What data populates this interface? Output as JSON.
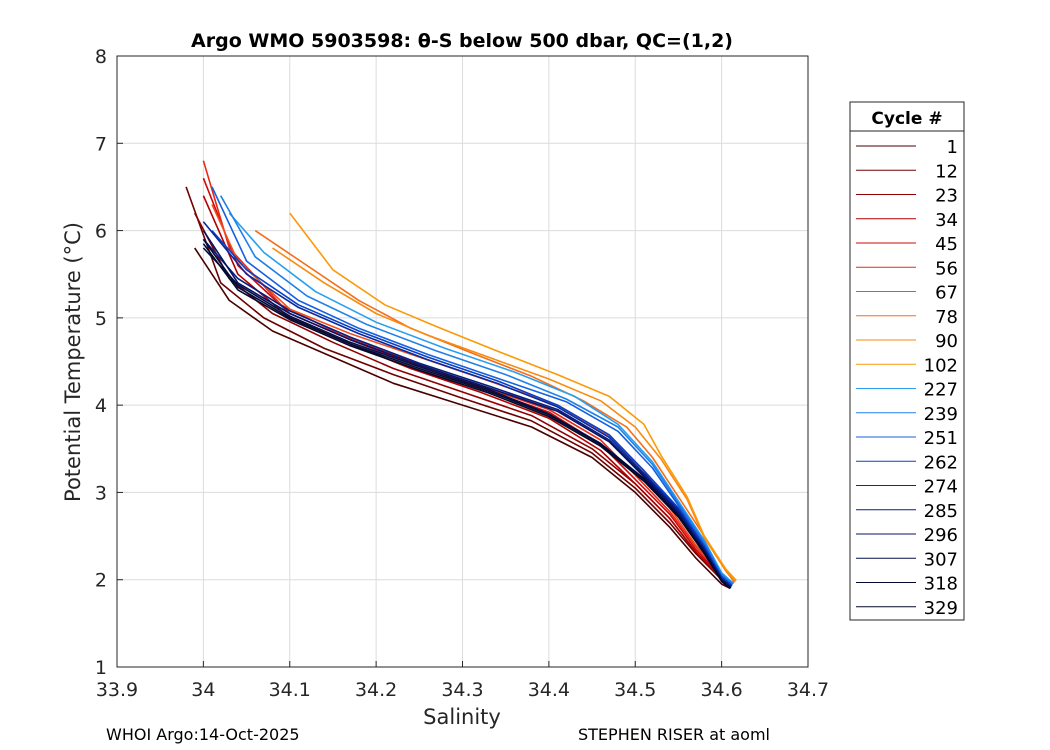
{
  "chart_data": {
    "type": "line",
    "title": "Argo WMO 5903598: θ-S below 500 dbar,  QC=(1,2)",
    "xlabel": "Salinity",
    "ylabel": "Potential Temperature (°C)",
    "xlim": [
      33.9,
      34.7
    ],
    "ylim": [
      1,
      8
    ],
    "xticks": [
      "33.9",
      "34",
      "34.1",
      "34.2",
      "34.3",
      "34.4",
      "34.5",
      "34.6",
      "34.7"
    ],
    "yticks": [
      "1",
      "2",
      "3",
      "4",
      "5",
      "6",
      "7",
      "8"
    ],
    "grid": true,
    "legend": {
      "title": "Cycle #",
      "placement": "right-outside",
      "entries": [
        {
          "label": "1",
          "color": "#4a0000"
        },
        {
          "label": "12",
          "color": "#6e0000"
        },
        {
          "label": "23",
          "color": "#8f0000"
        },
        {
          "label": "34",
          "color": "#b00000"
        },
        {
          "label": "45",
          "color": "#cc0a0a"
        },
        {
          "label": "56",
          "color": "#e62a18"
        },
        {
          "label": "67",
          "color": "#f05020"
        },
        {
          "label": "78",
          "color": "#f46e18"
        },
        {
          "label": "90",
          "color": "#f88a10"
        },
        {
          "label": "102",
          "color": "#fb9a08"
        },
        {
          "label": "227",
          "color": "#2a9ff0"
        },
        {
          "label": "239",
          "color": "#1f80ea"
        },
        {
          "label": "251",
          "color": "#1560e0"
        },
        {
          "label": "262",
          "color": "#0c40c4"
        },
        {
          "label": "274",
          "color": "#082aa0"
        },
        {
          "label": "285",
          "color": "#061c80"
        },
        {
          "label": "296",
          "color": "#051464"
        },
        {
          "label": "307",
          "color": "#040e48"
        },
        {
          "label": "318",
          "color": "#030a36"
        },
        {
          "label": "329",
          "color": "#02082a"
        }
      ]
    },
    "series": [
      {
        "name": "1",
        "color": "#4a0000",
        "s": [
          33.99,
          34.03,
          34.08,
          34.15,
          34.22,
          34.3,
          34.38,
          34.45,
          34.5,
          34.54,
          34.57,
          34.6,
          34.61
        ],
        "t": [
          5.8,
          5.2,
          4.85,
          4.55,
          4.25,
          4.0,
          3.75,
          3.4,
          3.0,
          2.6,
          2.25,
          1.95,
          1.9
        ]
      },
      {
        "name": "12",
        "color": "#6e0000",
        "s": [
          33.98,
          34.02,
          34.07,
          34.14,
          34.22,
          34.3,
          34.38,
          34.45,
          34.5,
          34.54,
          34.57,
          34.6,
          34.61
        ],
        "t": [
          6.5,
          5.4,
          5.0,
          4.65,
          4.35,
          4.08,
          3.82,
          3.45,
          3.05,
          2.65,
          2.3,
          2.0,
          1.92
        ]
      },
      {
        "name": "23",
        "color": "#8f0000",
        "s": [
          33.99,
          34.03,
          34.08,
          34.15,
          34.22,
          34.3,
          34.38,
          34.45,
          34.5,
          34.54,
          34.57,
          34.6,
          34.612
        ],
        "t": [
          6.2,
          5.45,
          5.05,
          4.72,
          4.42,
          4.15,
          3.88,
          3.5,
          3.1,
          2.7,
          2.32,
          2.0,
          1.93
        ]
      },
      {
        "name": "34",
        "color": "#b00000",
        "s": [
          34.0,
          34.04,
          34.1,
          34.17,
          34.24,
          34.32,
          34.4,
          34.46,
          34.5,
          34.54,
          34.57,
          34.6,
          34.612
        ],
        "t": [
          6.4,
          5.5,
          5.0,
          4.7,
          4.42,
          4.15,
          3.85,
          3.48,
          3.1,
          2.7,
          2.32,
          2.02,
          1.94
        ]
      },
      {
        "name": "45",
        "color": "#cc0a0a",
        "s": [
          34.0,
          34.04,
          34.1,
          34.17,
          34.24,
          34.32,
          34.4,
          34.46,
          34.5,
          34.54,
          34.57,
          34.6,
          34.613
        ],
        "t": [
          6.6,
          5.6,
          5.05,
          4.75,
          4.48,
          4.2,
          3.92,
          3.55,
          3.15,
          2.75,
          2.35,
          2.03,
          1.95
        ]
      },
      {
        "name": "56",
        "color": "#e62a18",
        "s": [
          34.0,
          34.03,
          34.09,
          34.16,
          34.24,
          34.32,
          34.4,
          34.46,
          34.5,
          34.54,
          34.57,
          34.6,
          34.614
        ],
        "t": [
          6.8,
          5.8,
          5.15,
          4.8,
          4.5,
          4.22,
          3.95,
          3.6,
          3.2,
          2.78,
          2.38,
          2.05,
          1.96
        ]
      },
      {
        "name": "67",
        "color": "#f05020",
        "s": [
          34.01,
          34.04,
          34.1,
          34.17,
          34.25,
          34.33,
          34.41,
          34.47,
          34.51,
          34.54,
          34.57,
          34.6,
          34.614
        ],
        "t": [
          6.3,
          5.65,
          5.1,
          4.82,
          4.55,
          4.28,
          4.0,
          3.65,
          3.25,
          2.82,
          2.4,
          2.06,
          1.96
        ]
      },
      {
        "name": "78",
        "color": "#f46e18",
        "s": [
          34.06,
          34.12,
          34.18,
          34.24,
          34.31,
          34.38,
          34.44,
          34.49,
          34.52,
          34.55,
          34.58,
          34.605,
          34.615
        ],
        "t": [
          6.0,
          5.6,
          5.2,
          4.88,
          4.6,
          4.33,
          4.05,
          3.75,
          3.4,
          2.95,
          2.5,
          2.1,
          1.97
        ]
      },
      {
        "name": "90",
        "color": "#f88a10",
        "s": [
          34.08,
          34.14,
          34.2,
          34.26,
          34.33,
          34.4,
          34.46,
          34.5,
          34.53,
          34.56,
          34.58,
          34.605,
          34.616
        ],
        "t": [
          5.8,
          5.4,
          5.05,
          4.8,
          4.55,
          4.3,
          4.05,
          3.75,
          3.38,
          2.92,
          2.48,
          2.1,
          1.98
        ]
      },
      {
        "name": "102",
        "color": "#fb9a08",
        "s": [
          34.1,
          34.15,
          34.21,
          34.27,
          34.34,
          34.41,
          34.47,
          34.51,
          34.53,
          34.56,
          34.58,
          34.605,
          34.617
        ],
        "t": [
          6.2,
          5.55,
          5.15,
          4.9,
          4.62,
          4.35,
          4.1,
          3.78,
          3.42,
          2.95,
          2.5,
          2.12,
          1.99
        ]
      },
      {
        "name": "227",
        "color": "#2a9ff0",
        "s": [
          34.03,
          34.07,
          34.13,
          34.2,
          34.28,
          34.36,
          34.43,
          34.48,
          34.52,
          34.55,
          34.58,
          34.6,
          34.613
        ],
        "t": [
          6.2,
          5.75,
          5.3,
          4.95,
          4.65,
          4.38,
          4.1,
          3.78,
          3.35,
          2.9,
          2.45,
          2.08,
          1.96
        ]
      },
      {
        "name": "239",
        "color": "#1f80ea",
        "s": [
          34.02,
          34.06,
          34.12,
          34.19,
          34.27,
          34.35,
          34.42,
          34.48,
          34.52,
          34.55,
          34.58,
          34.6,
          34.613
        ],
        "t": [
          6.4,
          5.7,
          5.25,
          4.92,
          4.62,
          4.35,
          4.07,
          3.75,
          3.32,
          2.88,
          2.43,
          2.06,
          1.95
        ]
      },
      {
        "name": "251",
        "color": "#1560e0",
        "s": [
          34.01,
          34.05,
          34.11,
          34.18,
          34.26,
          34.34,
          34.42,
          34.48,
          34.52,
          34.55,
          34.58,
          34.6,
          34.612
        ],
        "t": [
          6.5,
          5.65,
          5.2,
          4.88,
          4.58,
          4.31,
          4.04,
          3.7,
          3.28,
          2.85,
          2.4,
          2.04,
          1.94
        ]
      },
      {
        "name": "262",
        "color": "#0c40c4",
        "s": [
          34.01,
          34.05,
          34.11,
          34.18,
          34.26,
          34.34,
          34.41,
          34.47,
          34.51,
          34.55,
          34.58,
          34.6,
          34.612
        ],
        "t": [
          6.0,
          5.55,
          5.15,
          4.85,
          4.55,
          4.28,
          4.0,
          3.66,
          3.25,
          2.82,
          2.38,
          2.03,
          1.93
        ]
      },
      {
        "name": "274",
        "color": "#082aa0",
        "s": [
          34.0,
          34.05,
          34.11,
          34.18,
          34.26,
          34.34,
          34.41,
          34.47,
          34.51,
          34.55,
          34.58,
          34.6,
          34.611
        ],
        "t": [
          6.1,
          5.5,
          5.12,
          4.82,
          4.52,
          4.25,
          3.98,
          3.63,
          3.22,
          2.8,
          2.36,
          2.02,
          1.92
        ]
      },
      {
        "name": "285",
        "color": "#061c80",
        "s": [
          34.0,
          34.04,
          34.1,
          34.17,
          34.25,
          34.33,
          34.41,
          34.47,
          34.51,
          34.55,
          34.58,
          34.6,
          34.611
        ],
        "t": [
          5.9,
          5.45,
          5.08,
          4.78,
          4.48,
          4.22,
          3.95,
          3.6,
          3.2,
          2.78,
          2.34,
          2.0,
          1.92
        ]
      },
      {
        "name": "296",
        "color": "#051464",
        "s": [
          34.0,
          34.04,
          34.1,
          34.17,
          34.25,
          34.33,
          34.41,
          34.47,
          34.51,
          34.55,
          34.58,
          34.6,
          34.611
        ],
        "t": [
          6.0,
          5.4,
          5.05,
          4.75,
          4.46,
          4.2,
          3.93,
          3.58,
          3.18,
          2.76,
          2.33,
          2.0,
          1.91
        ]
      },
      {
        "name": "307",
        "color": "#040e48",
        "s": [
          34.0,
          34.04,
          34.1,
          34.17,
          34.25,
          34.33,
          34.4,
          34.46,
          34.51,
          34.55,
          34.58,
          34.6,
          34.61
        ],
        "t": [
          5.8,
          5.38,
          5.02,
          4.72,
          4.44,
          4.18,
          3.9,
          3.56,
          3.16,
          2.74,
          2.32,
          1.99,
          1.9
        ]
      },
      {
        "name": "318",
        "color": "#030a36",
        "s": [
          34.0,
          34.04,
          34.1,
          34.17,
          34.25,
          34.33,
          34.4,
          34.46,
          34.51,
          34.55,
          34.58,
          34.6,
          34.61
        ],
        "t": [
          5.9,
          5.35,
          5.0,
          4.7,
          4.42,
          4.16,
          3.89,
          3.55,
          3.15,
          2.73,
          2.31,
          1.99,
          1.9
        ]
      },
      {
        "name": "329",
        "color": "#02082a",
        "s": [
          34.0,
          34.04,
          34.1,
          34.17,
          34.25,
          34.33,
          34.4,
          34.46,
          34.51,
          34.55,
          34.58,
          34.6,
          34.61
        ],
        "t": [
          5.85,
          5.32,
          4.98,
          4.68,
          4.4,
          4.14,
          3.87,
          3.53,
          3.13,
          2.72,
          2.3,
          1.98,
          1.9
        ]
      }
    ]
  },
  "footer": {
    "left": "WHOI Argo:14-Oct-2025",
    "right": "STEPHEN RISER at aoml"
  }
}
